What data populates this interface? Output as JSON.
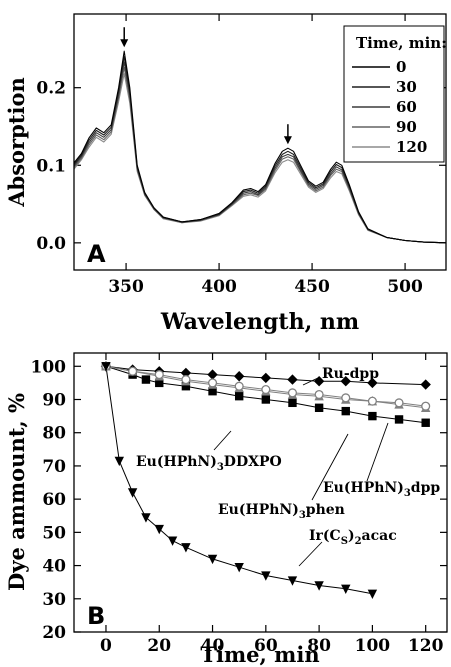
{
  "chart_data": [
    {
      "type": "line",
      "panel": "A",
      "xlabel": "Wavelength, nm",
      "ylabel": "Absorption",
      "xlim": [
        322,
        522
      ],
      "ylim": [
        -0.035,
        0.295
      ],
      "xticks": [
        350,
        400,
        450,
        500
      ],
      "yticks": [
        0.0,
        0.1,
        0.2
      ],
      "ytick_labels": [
        "0.0",
        "0.1",
        "0.2"
      ],
      "legend_title": "Time, min:",
      "legend_position": "top-right",
      "arrows_at_nm": [
        349,
        437
      ],
      "x": [
        322,
        326,
        330,
        334,
        338,
        342,
        346,
        349,
        352,
        356,
        360,
        365,
        370,
        380,
        390,
        400,
        407,
        413,
        417,
        421,
        425,
        430,
        434,
        437,
        440,
        444,
        448,
        452,
        456,
        460,
        463,
        466,
        470,
        475,
        480,
        490,
        500,
        510,
        522
      ],
      "series": [
        {
          "name": "0",
          "color": "#000000",
          "values": [
            0.103,
            0.115,
            0.135,
            0.148,
            0.142,
            0.152,
            0.2,
            0.247,
            0.2,
            0.1,
            0.065,
            0.045,
            0.033,
            0.027,
            0.03,
            0.038,
            0.052,
            0.068,
            0.07,
            0.066,
            0.075,
            0.102,
            0.118,
            0.122,
            0.118,
            0.099,
            0.08,
            0.073,
            0.078,
            0.095,
            0.104,
            0.1,
            0.075,
            0.04,
            0.018,
            0.007,
            0.003,
            0.001,
            0.0
          ]
        },
        {
          "name": "30",
          "color": "#1e1e1e",
          "values": [
            0.101,
            0.113,
            0.132,
            0.145,
            0.139,
            0.149,
            0.196,
            0.24,
            0.195,
            0.098,
            0.064,
            0.045,
            0.033,
            0.027,
            0.03,
            0.037,
            0.051,
            0.066,
            0.068,
            0.064,
            0.073,
            0.099,
            0.114,
            0.118,
            0.114,
            0.096,
            0.078,
            0.071,
            0.076,
            0.092,
            0.101,
            0.097,
            0.073,
            0.039,
            0.018,
            0.007,
            0.003,
            0.001,
            0.0
          ]
        },
        {
          "name": "60",
          "color": "#3c3c3c",
          "values": [
            0.099,
            0.111,
            0.129,
            0.142,
            0.136,
            0.146,
            0.191,
            0.233,
            0.19,
            0.096,
            0.063,
            0.044,
            0.032,
            0.027,
            0.029,
            0.036,
            0.05,
            0.064,
            0.066,
            0.062,
            0.071,
            0.096,
            0.111,
            0.114,
            0.111,
            0.093,
            0.076,
            0.069,
            0.074,
            0.089,
            0.098,
            0.094,
            0.071,
            0.038,
            0.017,
            0.007,
            0.003,
            0.001,
            0.0
          ]
        },
        {
          "name": "90",
          "color": "#646464",
          "values": [
            0.097,
            0.109,
            0.126,
            0.139,
            0.133,
            0.143,
            0.187,
            0.226,
            0.185,
            0.094,
            0.062,
            0.043,
            0.032,
            0.026,
            0.029,
            0.036,
            0.049,
            0.062,
            0.064,
            0.061,
            0.069,
            0.093,
            0.108,
            0.111,
            0.108,
            0.091,
            0.074,
            0.067,
            0.072,
            0.087,
            0.095,
            0.092,
            0.069,
            0.037,
            0.017,
            0.007,
            0.003,
            0.001,
            0.0
          ]
        },
        {
          "name": "120",
          "color": "#8c8c8c",
          "values": [
            0.095,
            0.107,
            0.123,
            0.136,
            0.13,
            0.14,
            0.182,
            0.218,
            0.18,
            0.092,
            0.061,
            0.043,
            0.031,
            0.026,
            0.028,
            0.035,
            0.048,
            0.06,
            0.062,
            0.059,
            0.067,
            0.09,
            0.104,
            0.107,
            0.104,
            0.088,
            0.072,
            0.065,
            0.07,
            0.084,
            0.092,
            0.089,
            0.067,
            0.036,
            0.016,
            0.007,
            0.003,
            0.001,
            0.0
          ]
        }
      ]
    },
    {
      "type": "scatter",
      "panel": "B",
      "xlabel": "Time, min",
      "ylabel": "Dye ammount, %",
      "xlim": [
        -12,
        128
      ],
      "ylim": [
        20,
        104
      ],
      "xticks": [
        0,
        20,
        40,
        60,
        80,
        100,
        120
      ],
      "yticks": [
        20,
        30,
        40,
        50,
        60,
        70,
        80,
        90,
        100
      ],
      "series": [
        {
          "name": "Ru-dpp",
          "marker": "diamond",
          "color": "#000000",
          "x": [
            0,
            10,
            20,
            30,
            40,
            50,
            60,
            70,
            80,
            90,
            100,
            120
          ],
          "values": [
            100,
            99,
            98.5,
            98,
            97.5,
            97,
            96.5,
            96,
            95.5,
            95.5,
            95,
            94.5
          ]
        },
        {
          "name": "Eu(HPhN)3dpp",
          "marker": "square",
          "color": "#000000",
          "x": [
            0,
            10,
            15,
            20,
            30,
            40,
            50,
            60,
            70,
            80,
            90,
            100,
            110,
            120
          ],
          "values": [
            100,
            97.5,
            96,
            95,
            94,
            92.5,
            91,
            90,
            89,
            87.5,
            86.5,
            85,
            84,
            83
          ]
        },
        {
          "name": "Eu(HPhN)3DDXPO",
          "marker": "triangle-up",
          "color": "#808080",
          "x": [
            0,
            10,
            20,
            30,
            40,
            50,
            60,
            70,
            80,
            90,
            100,
            110,
            120
          ],
          "values": [
            100,
            98.5,
            97,
            95.5,
            94.5,
            93.5,
            92.5,
            91.5,
            91,
            90,
            89.5,
            88.5,
            87.5
          ]
        },
        {
          "name": "Eu(HPhN)3phen",
          "marker": "circle-open",
          "color": "#808080",
          "x": [
            0,
            10,
            20,
            30,
            40,
            50,
            60,
            70,
            80,
            90,
            100,
            110,
            120
          ],
          "values": [
            100,
            98.5,
            97.5,
            96,
            95,
            94,
            93,
            92,
            91.5,
            90.5,
            89.5,
            89,
            88
          ]
        },
        {
          "name": "Ir(CS)2acac",
          "marker": "triangle-down",
          "color": "#000000",
          "x": [
            0,
            5,
            10,
            15,
            20,
            25,
            30,
            40,
            50,
            60,
            70,
            80,
            90,
            100
          ],
          "values": [
            100,
            71.5,
            62,
            54.5,
            51,
            47.5,
            45.5,
            42,
            39.5,
            37,
            35.5,
            34,
            33,
            31.5
          ]
        }
      ]
    }
  ]
}
